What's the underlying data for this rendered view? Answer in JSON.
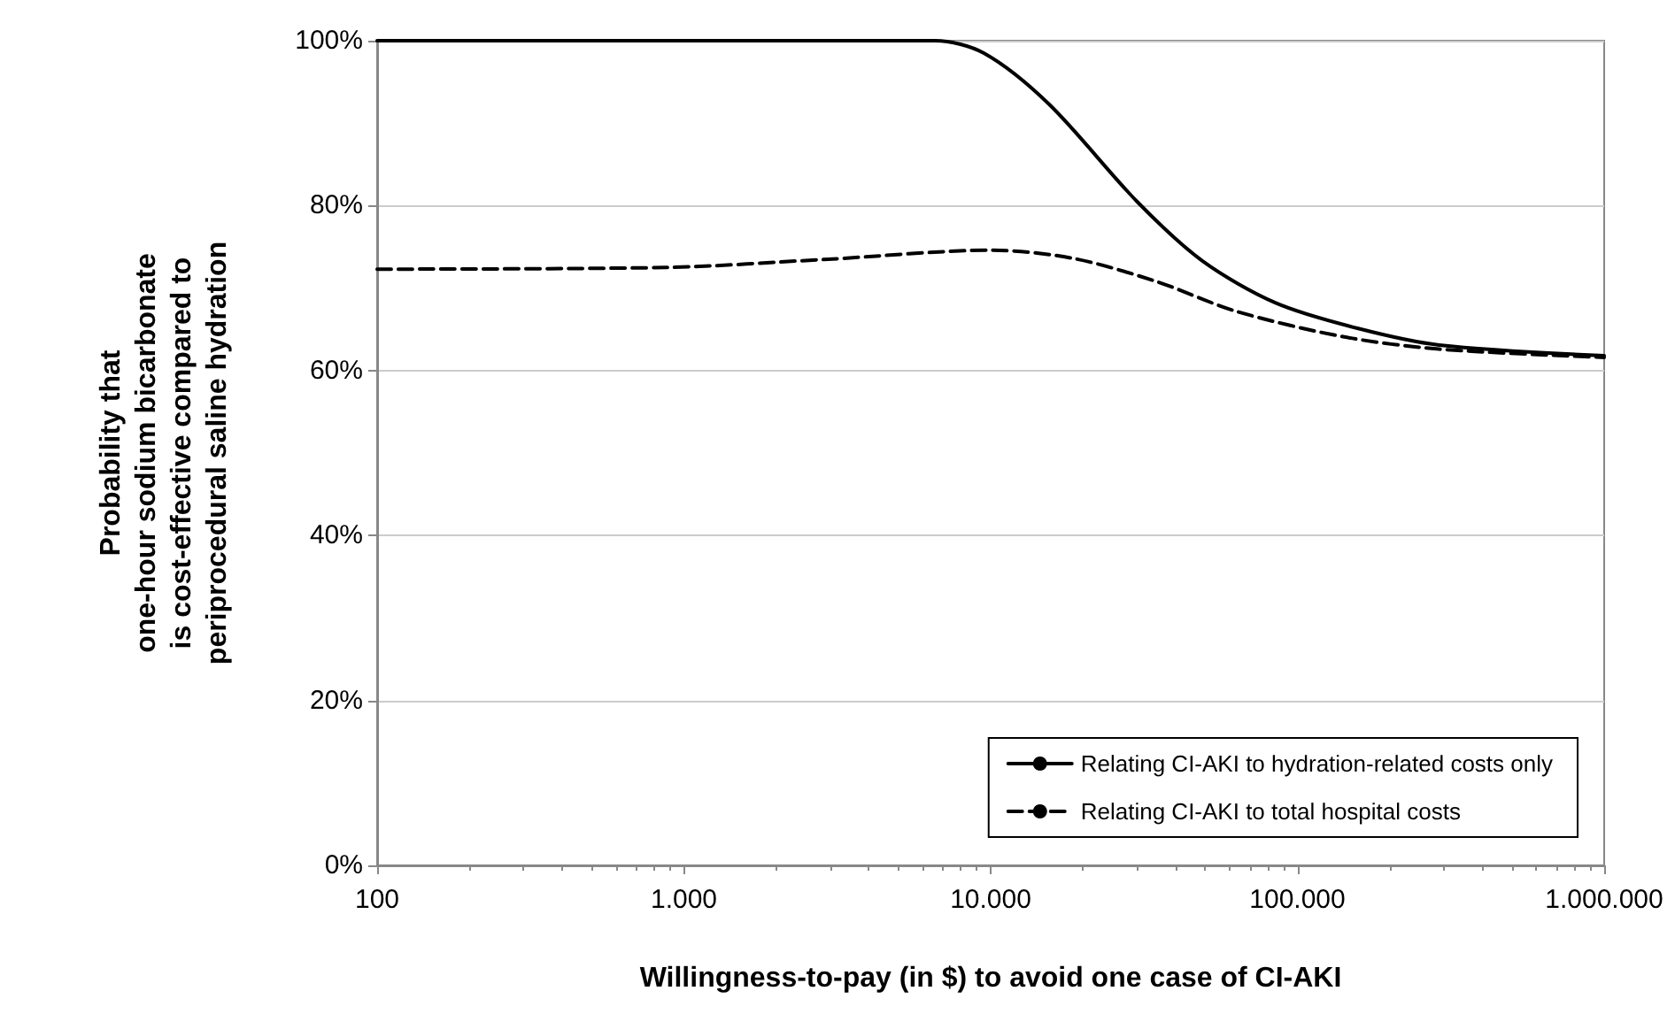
{
  "chart_data": {
    "type": "line",
    "xlabel": "Willingness-to-pay (in $) to avoid one case of CI-AKI",
    "ylabel": "Probability that\none-hour sodium bicarbonate\nis cost-effective compared to\nperiprocedural saline hydration",
    "log": "x",
    "xlim": [
      100,
      1000000
    ],
    "xticks": [
      100,
      {
        "value": 1000,
        "label": "1.000"
      },
      {
        "value": 10000,
        "label": "10.000"
      },
      {
        "value": 100000,
        "label": "100.000"
      },
      {
        "value": 1000000,
        "label": "1.000.000"
      }
    ],
    "ylim": [
      0,
      100
    ],
    "yticks": [
      {
        "value": 0,
        "label": "0%"
      },
      {
        "value": 20,
        "label": "20%"
      },
      {
        "value": 40,
        "label": "40%"
      },
      {
        "value": 60,
        "label": "60%"
      },
      {
        "value": 80,
        "label": "80%"
      },
      {
        "value": 100,
        "label": "100%"
      }
    ],
    "grid": "y",
    "legend": "bottom right",
    "marker": "none",
    "series": [
      {
        "name": "Relating CI-AKI to hydration-related costs only",
        "color": "#000000",
        "line_style": "solid",
        "x": [
          100,
          1000,
          6600,
          9500,
          15500,
          30000,
          49000,
          85000,
          158000,
          290000,
          1000000
        ],
        "values": [
          100,
          100,
          100,
          98.5,
          92.3,
          80.5,
          73.3,
          68.2,
          65.1,
          63.1,
          61.8
        ]
      },
      {
        "name": "Relating CI-AKI to total hospital costs",
        "color": "#000000",
        "line_style": "dashed",
        "x": [
          100,
          870,
          2950,
          10000,
          18600,
          34700,
          63000,
          141000,
          290000,
          1000000
        ],
        "values": [
          72.3,
          72.5,
          73.5,
          74.6,
          73.6,
          70.8,
          67.2,
          64.1,
          62.6,
          61.6
        ]
      }
    ]
  }
}
